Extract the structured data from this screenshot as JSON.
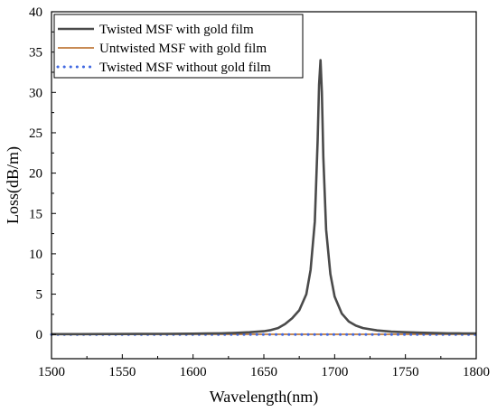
{
  "colors": {
    "twisted_gold": "#4a4a4a",
    "untwisted_gold": "#b5651d",
    "twisted_no_gold": "#4169e1",
    "axis": "#000000"
  },
  "chart_data": {
    "type": "line",
    "title": "",
    "xlabel": "Wavelength(nm)",
    "ylabel": "Loss(dB/m)",
    "xlim": [
      1500,
      1800
    ],
    "ylim": [
      -3,
      40
    ],
    "xticks": [
      1500,
      1550,
      1600,
      1650,
      1700,
      1750,
      1800
    ],
    "yticks": [
      0,
      5,
      10,
      15,
      20,
      25,
      30,
      35,
      40
    ],
    "grid": false,
    "legend_position": "top-left",
    "series": [
      {
        "name": "Twisted MSF with gold film",
        "style": "solid",
        "color": "#4a4a4a",
        "x": [
          1500,
          1520,
          1540,
          1560,
          1580,
          1600,
          1610,
          1620,
          1630,
          1640,
          1650,
          1655,
          1660,
          1665,
          1670,
          1675,
          1680,
          1683,
          1686,
          1688,
          1689,
          1690,
          1691,
          1692,
          1694,
          1697,
          1700,
          1705,
          1710,
          1715,
          1720,
          1730,
          1740,
          1750,
          1760,
          1770,
          1780,
          1790,
          1800
        ],
        "y": [
          0.05,
          0.05,
          0.06,
          0.07,
          0.08,
          0.1,
          0.12,
          0.15,
          0.2,
          0.28,
          0.4,
          0.55,
          0.8,
          1.3,
          2.0,
          3.0,
          5.0,
          8.0,
          14.0,
          24.0,
          31.0,
          34.0,
          30.0,
          22.0,
          13.0,
          7.5,
          4.7,
          2.6,
          1.6,
          1.1,
          0.8,
          0.5,
          0.35,
          0.28,
          0.22,
          0.18,
          0.15,
          0.13,
          0.12
        ]
      },
      {
        "name": "Untwisted MSF with gold film",
        "style": "solid",
        "color": "#b5651d",
        "x": [
          1500,
          1550,
          1600,
          1650,
          1700,
          1750,
          1800
        ],
        "y": [
          0.02,
          0.02,
          0.02,
          0.02,
          0.02,
          0.02,
          0.02
        ]
      },
      {
        "name": "Twisted MSF without gold film",
        "style": "dotted",
        "color": "#4169e1",
        "x": [
          1500,
          1550,
          1600,
          1650,
          1700,
          1750,
          1800
        ],
        "y": [
          0.0,
          0.0,
          0.0,
          0.0,
          0.0,
          0.0,
          0.0
        ]
      }
    ]
  }
}
